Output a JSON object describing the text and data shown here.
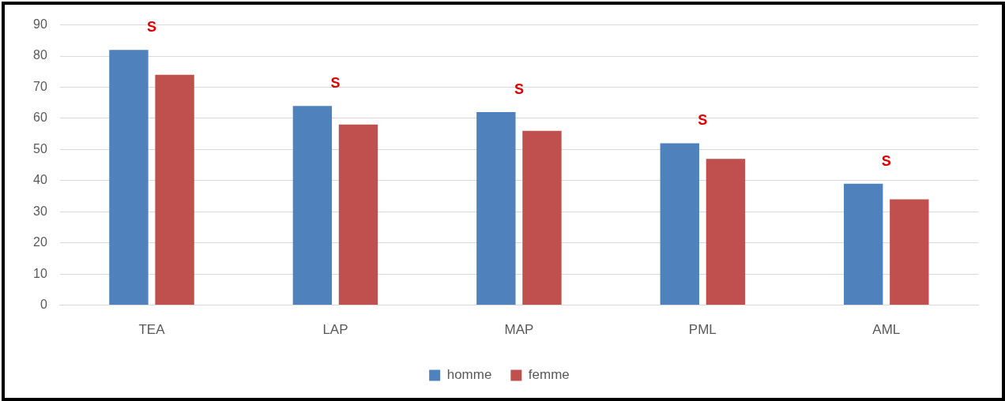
{
  "chart_data": {
    "type": "bar",
    "categories": [
      "TEA",
      "LAP",
      "MAP",
      "PML",
      "AML"
    ],
    "series": [
      {
        "name": "homme",
        "color": "#4f81bd",
        "values": [
          82,
          64,
          62,
          52,
          39
        ]
      },
      {
        "name": "femme",
        "color": "#c0504d",
        "values": [
          74,
          58,
          56,
          47,
          34
        ]
      }
    ],
    "ylim": [
      0,
      90
    ],
    "yticks": [
      0,
      10,
      20,
      30,
      40,
      50,
      60,
      70,
      80,
      90
    ],
    "grid": "y",
    "legend": "bottom",
    "annotations": [
      "S",
      "S",
      "S",
      "S",
      "S"
    ]
  }
}
